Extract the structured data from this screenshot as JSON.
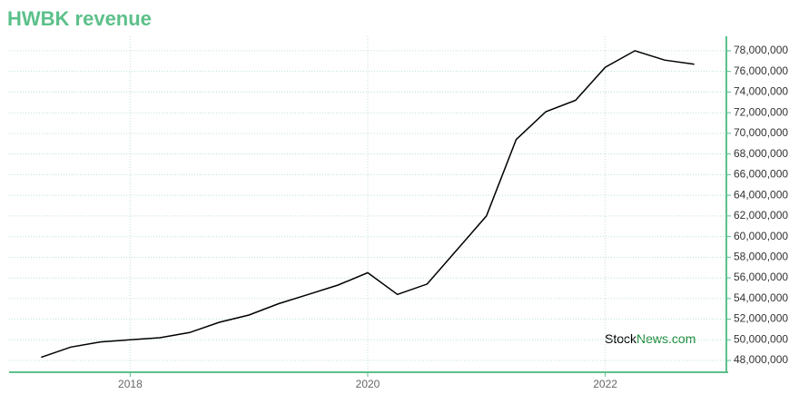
{
  "chart_data": {
    "type": "line",
    "title": "HWBK revenue",
    "x": [
      2017.25,
      2017.5,
      2017.75,
      2018,
      2018.25,
      2018.5,
      2018.75,
      2019,
      2019.25,
      2019.5,
      2019.75,
      2020,
      2020.25,
      2020.5,
      2020.75,
      2021,
      2021.25,
      2021.5,
      2021.75,
      2022,
      2022.25,
      2022.5,
      2022.75
    ],
    "values": [
      48300000,
      49300000,
      49800000,
      50000000,
      50200000,
      50700000,
      51700000,
      52400000,
      53500000,
      54400000,
      55300000,
      56500000,
      54400000,
      55400000,
      58700000,
      62000000,
      69400000,
      72100000,
      73200000,
      76400000,
      78000000,
      77100000,
      76700000
    ],
    "color": "#000000",
    "xlim": [
      2016.98,
      2023.02
    ],
    "xticks": [
      2018,
      2020,
      2022
    ],
    "ylim": [
      46860000,
      79400000
    ],
    "yticks": [
      {
        "value": 48000000,
        "label": "48,000,000"
      },
      {
        "value": 50000000,
        "label": "50,000,000"
      },
      {
        "value": 52000000,
        "label": "52,000,000"
      },
      {
        "value": 54000000,
        "label": "54,000,000"
      },
      {
        "value": 56000000,
        "label": "56,000,000"
      },
      {
        "value": 58000000,
        "label": "58,000,000"
      },
      {
        "value": 60000000,
        "label": "60,000,000"
      },
      {
        "value": 62000000,
        "label": "62,000,000"
      },
      {
        "value": 64000000,
        "label": "64,000,000"
      },
      {
        "value": 66000000,
        "label": "66,000,000"
      },
      {
        "value": 68000000,
        "label": "68,000,000"
      },
      {
        "value": 70000000,
        "label": "70,000,000"
      },
      {
        "value": 72000000,
        "label": "72,000,000"
      },
      {
        "value": 74000000,
        "label": "74,000,000"
      },
      {
        "value": 76000000,
        "label": "76,000,000"
      },
      {
        "value": 78000000,
        "label": "78,000,000"
      }
    ],
    "grid": true,
    "axis_color": "#5cc08a"
  },
  "watermark": [
    "Stock",
    "News.com"
  ]
}
